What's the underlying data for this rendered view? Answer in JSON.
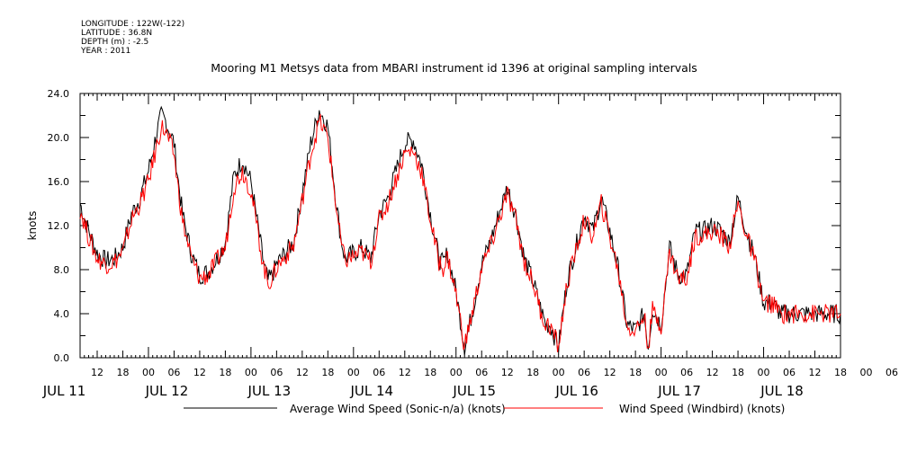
{
  "header": {
    "longitude": "LONGITUDE : 122W(-122)",
    "latitude": "LATITUDE : 36.8N",
    "depth": "DEPTH (m) : -2.5",
    "year": "YEAR : 2011"
  },
  "chart_data": {
    "type": "line",
    "title": "Mooring M1 Metsys data from MBARI instrument id 1396 at original sampling intervals",
    "xlabel": "",
    "ylabel": "knots",
    "ylim": [
      0,
      24
    ],
    "yticks": [
      "0.0",
      "4.0",
      "8.0",
      "12.0",
      "16.0",
      "20.0",
      "24.0"
    ],
    "x_range_hours": [
      8,
      186
    ],
    "x_tick_labels": [
      "12",
      "18",
      "00",
      "06",
      "12",
      "18",
      "00",
      "06",
      "12",
      "18",
      "00",
      "06",
      "12",
      "18",
      "00",
      "06",
      "12",
      "18",
      "00",
      "06",
      "12",
      "18",
      "00",
      "06",
      "12",
      "18",
      "00",
      "06",
      "12",
      "18",
      "00",
      "06"
    ],
    "day_labels": [
      "JUL 11",
      "JUL 12",
      "JUL 13",
      "JUL 14",
      "JUL 15",
      "JUL 16",
      "JUL 17",
      "JUL 18"
    ],
    "grid": false,
    "legend": "bottom",
    "series": [
      {
        "name": "Average Wind Speed (Sonic-n/a) (knots)",
        "color": "#000000",
        "x": [
          8,
          10,
          12,
          14,
          16,
          18,
          20,
          22,
          24,
          26,
          27,
          28,
          30,
          31,
          32,
          34,
          36,
          38,
          40,
          42,
          44,
          46,
          48,
          50,
          51,
          52,
          53,
          54,
          56,
          58,
          60,
          62,
          64,
          66,
          68,
          69,
          70,
          72,
          74,
          76,
          78,
          80,
          82,
          84,
          86,
          88,
          90,
          92,
          93,
          94,
          96,
          98,
          100,
          102,
          104,
          106,
          108,
          110,
          112,
          114,
          116,
          117,
          118,
          120,
          122,
          124,
          126,
          128,
          130,
          132,
          134,
          136,
          138,
          140,
          141,
          142,
          144,
          146,
          148,
          150,
          152,
          154,
          156,
          158,
          160,
          162,
          164,
          166,
          168,
          170,
          172,
          174,
          176,
          178,
          180,
          182,
          184,
          185,
          186
        ],
        "y": [
          14,
          11.5,
          9.5,
          8.8,
          9,
          10,
          13,
          14.5,
          17,
          20.5,
          22,
          21.5,
          19.5,
          16,
          13,
          9.5,
          7.5,
          7.8,
          9,
          10.5,
          16.5,
          18,
          16,
          11,
          8.5,
          7,
          7.5,
          8.5,
          9.5,
          10.5,
          15,
          19.5,
          22.5,
          21,
          14,
          11,
          9,
          9.5,
          10,
          9,
          13,
          14.5,
          17,
          19.5,
          19.8,
          17.5,
          13,
          9,
          8.5,
          9.5,
          6,
          1,
          4.5,
          8.5,
          10.5,
          13,
          15.5,
          13,
          9,
          7,
          4.2,
          3,
          3,
          1,
          7,
          10,
          13,
          11.5,
          14.5,
          11.5,
          8,
          3,
          2.5,
          4,
          1,
          4.5,
          3,
          10,
          7.5,
          7.5,
          11.5,
          11.5,
          12,
          11.5,
          10.5,
          14.5,
          11.5,
          9,
          5,
          5,
          4,
          4,
          4,
          4,
          4,
          4,
          4,
          4,
          4
        ]
      },
      {
        "name": "Wind Speed (Windbird) (knots)",
        "color": "#ff0000",
        "x": [
          8,
          10,
          12,
          14,
          16,
          18,
          20,
          22,
          24,
          26,
          27,
          28,
          30,
          31,
          32,
          34,
          36,
          38,
          40,
          42,
          44,
          46,
          48,
          50,
          51,
          52,
          53,
          54,
          56,
          58,
          60,
          62,
          64,
          66,
          68,
          69,
          70,
          72,
          74,
          76,
          78,
          80,
          82,
          84,
          86,
          88,
          90,
          92,
          93,
          94,
          96,
          98,
          100,
          102,
          104,
          106,
          108,
          110,
          112,
          114,
          116,
          117,
          118,
          120,
          122,
          124,
          126,
          128,
          130,
          132,
          134,
          136,
          138,
          140,
          141,
          142,
          144,
          146,
          148,
          150,
          152,
          154,
          156,
          158,
          160,
          162,
          164,
          166,
          168,
          170,
          172,
          174,
          176,
          178,
          180,
          182,
          184,
          185,
          186
        ],
        "y": [
          13.5,
          11,
          9,
          8.5,
          8.7,
          9.6,
          12.5,
          14,
          16,
          19.3,
          21,
          20.5,
          18.5,
          15.2,
          12.4,
          9.1,
          7.2,
          7.5,
          8.8,
          10,
          15.5,
          17,
          15.2,
          10.5,
          8.2,
          6.8,
          7.2,
          8.2,
          9.2,
          10.2,
          14.3,
          18.5,
          21.5,
          20,
          13.5,
          10.6,
          8.8,
          9.2,
          9.6,
          8.7,
          12.5,
          14,
          16.3,
          18.6,
          18.8,
          16.8,
          12.5,
          8.7,
          8.2,
          9.2,
          5.8,
          1,
          4.4,
          8.2,
          10,
          12.5,
          14.8,
          12.5,
          8.7,
          6.8,
          4,
          3,
          2.9,
          1,
          6.7,
          9.6,
          12.5,
          11,
          14,
          11,
          7.8,
          2.9,
          2.4,
          3.9,
          1,
          4.3,
          2.9,
          9.6,
          7.2,
          7.2,
          11.1,
          11.1,
          11.5,
          11.1,
          10.2,
          14,
          11.1,
          8.7,
          4.9,
          4.9,
          4,
          4,
          4,
          4,
          4,
          4,
          4,
          4,
          4
        ]
      }
    ]
  }
}
